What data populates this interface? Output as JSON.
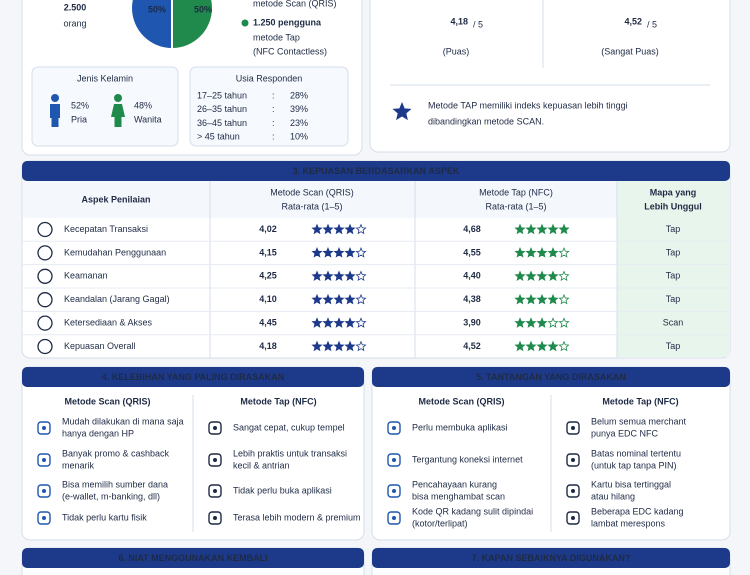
{
  "participants": {
    "total": "2.500",
    "total_unit": "orang",
    "pie": {
      "scan": "50%",
      "tap": "50%"
    },
    "legend": {
      "scan": "metode Scan (QRIS)",
      "tap_count": "1.250 pengguna",
      "tap_lines": [
        "metode Tap",
        "(NFC Contactless)"
      ]
    }
  },
  "gender": {
    "title": "Jenis Kelamin",
    "items": [
      {
        "percent": "52%",
        "label": "Pria",
        "color": "#1f56b0"
      },
      {
        "percent": "48%",
        "label": "Wanita",
        "color": "#1f8a4c"
      }
    ]
  },
  "age": {
    "title": "Usia Responden",
    "rows": [
      [
        "17–25 tahun",
        ":",
        "28%"
      ],
      [
        "26–35 tahun",
        ":",
        "39%"
      ],
      [
        "36–45 tahun",
        ":",
        "23%"
      ],
      [
        "> 45 tahun",
        ":",
        "10%"
      ]
    ]
  },
  "satisfaction": {
    "scan": {
      "score": "4,18",
      "scale": "/ 5",
      "label": "(Puas)",
      "color": "#1f56b0"
    },
    "tap": {
      "score": "4,52",
      "scale": "/ 5",
      "label": "(Sangat Puas)",
      "color": "#1f8a4c"
    },
    "note": [
      "Metode TAP memiliki indeks kepuasan lebih tinggi",
      "dibandingkan metode SCAN."
    ]
  },
  "aspects": {
    "title": "3. KEPUASAN BERDASARKAN ASPEK",
    "headers": {
      "aspect": "Aspek Penilaian",
      "scan": "Metode Scan (QRIS)",
      "scan_sub": "Rata-rata (1–5)",
      "tap": "Metode Tap (NFC)",
      "tap_sub": "Rata-rata (1–5)",
      "best": [
        "Mapa yang",
        "Lebih Unggul"
      ]
    },
    "rows": [
      {
        "name": "Kecepatan Transaksi",
        "scan": "4,02",
        "scan_stars": 4,
        "tap": "4,68",
        "tap_stars": 5,
        "best": "Tap",
        "best_color": "#1f8a4c"
      },
      {
        "name": "Kemudahan Penggunaan",
        "scan": "4,15",
        "scan_stars": 4,
        "tap": "4,55",
        "tap_stars": 4,
        "best": "Tap",
        "best_color": "#1f8a4c"
      },
      {
        "name": "Keamanan",
        "scan": "4,25",
        "scan_stars": 4,
        "tap": "4,40",
        "tap_stars": 4,
        "best": "Tap",
        "best_color": "#1f8a4c"
      },
      {
        "name": "Keandalan (Jarang Gagal)",
        "scan": "4,10",
        "scan_stars": 4,
        "tap": "4,38",
        "tap_stars": 4,
        "best": "Tap",
        "best_color": "#1f8a4c"
      },
      {
        "name": "Ketersediaan & Akses",
        "scan": "4,45",
        "scan_stars": 4,
        "tap": "3,90",
        "tap_stars": 3,
        "best": "Scan",
        "best_color": "#1f56b0"
      },
      {
        "name": "Kepuasan Overall",
        "scan": "4,18",
        "scan_stars": 4,
        "tap": "4,52",
        "tap_stars": 4,
        "best": "Tap",
        "best_color": "#1f8a4c"
      }
    ]
  },
  "advantages": {
    "title": "4. KELEBIHAN YANG PALING DIRASAKAN",
    "scan": {
      "title": "Metode Scan (QRIS)",
      "items": [
        [
          "Mudah dilakukan di mana saja",
          "hanya dengan HP"
        ],
        [
          "Banyak promo & cashback",
          "menarik"
        ],
        [
          "Bisa memilih sumber dana",
          "(e-wallet, m-banking, dll)"
        ],
        [
          "Tidak perlu kartu fisik"
        ]
      ]
    },
    "tap": {
      "title": "Metode Tap (NFC)",
      "items": [
        [
          "Sangat cepat, cukup tempel"
        ],
        [
          "Lebih praktis untuk transaksi",
          "kecil & antrian"
        ],
        [
          "Tidak perlu buka aplikasi"
        ],
        [
          "Terasa lebih modern & premium"
        ]
      ]
    }
  },
  "challenges": {
    "title": "5. TANTANGAN YANG DIRASAKAN",
    "scan": {
      "title": "Metode Scan (QRIS)",
      "items": [
        [
          "Perlu membuka aplikasi"
        ],
        [
          "Tergantung koneksi internet"
        ],
        [
          "Pencahayaan kurang",
          "bisa menghambat scan"
        ],
        [
          "Kode QR kadang sulit dipindai",
          "(kotor/terlipat)"
        ]
      ]
    },
    "tap": {
      "title": "Metode Tap (NFC)",
      "items": [
        [
          "Belum semua merchant",
          "punya EDC NFC"
        ],
        [
          "Batas nominal tertentu",
          "(untuk tap tanpa PIN)"
        ],
        [
          "Kartu bisa tertinggal",
          "atau hilang"
        ],
        [
          "Beberapa EDC kadang",
          "lambat merespons"
        ]
      ]
    }
  },
  "section6": {
    "title": "6. NIAT MENGGUNAKAN KEMBALI"
  },
  "section7": {
    "title": "7. KAPAN SEBAIKNYA DIGUNAKAN?"
  }
}
